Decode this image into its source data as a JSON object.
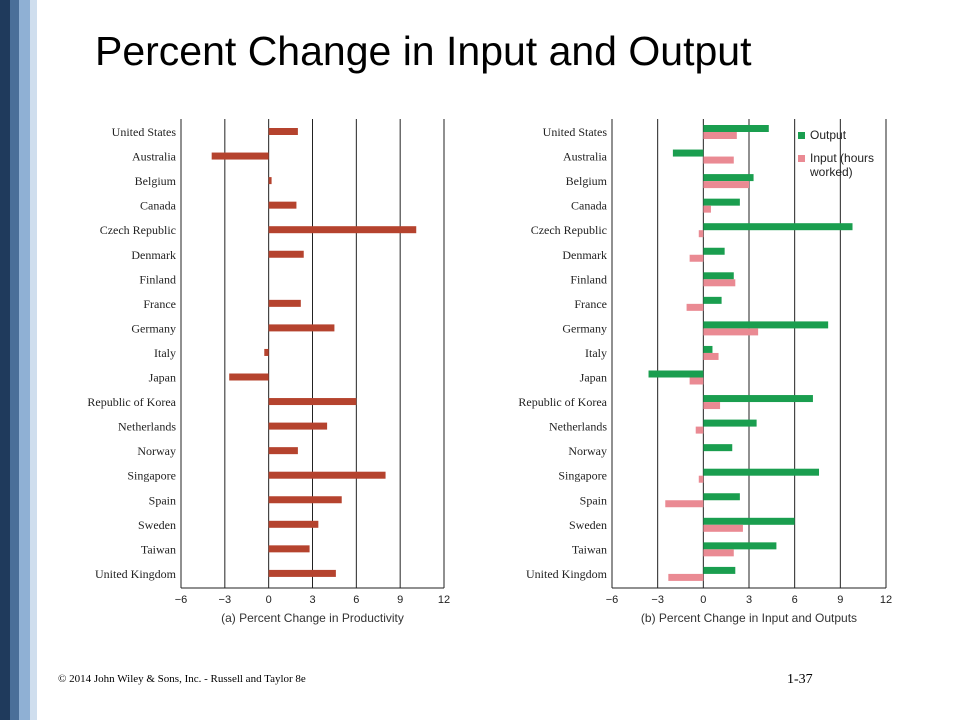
{
  "slide": {
    "title": "Percent Change in Input and Output",
    "footer": "© 2014 John Wiley & Sons, Inc. - Russell and Taylor 8e",
    "page_number": "1-37"
  },
  "colors": {
    "productivity": "#b5432e",
    "output": "#1a9e4f",
    "input": "#ea8a93",
    "grid": "#222222"
  },
  "chart_data": [
    {
      "type": "bar",
      "orientation": "horizontal",
      "xlabel": "(a) Percent Change in Productivity",
      "xlim": [
        -6,
        12
      ],
      "xticks": [
        -6,
        -3,
        0,
        3,
        6,
        9,
        12
      ],
      "xtick_labels": [
        "−6",
        "−3",
        "0",
        "3",
        "6",
        "9",
        "12"
      ],
      "grid": true,
      "categories": [
        "United States",
        "Australia",
        "Belgium",
        "Canada",
        "Czech Republic",
        "Denmark",
        "Finland",
        "France",
        "Germany",
        "Italy",
        "Japan",
        "Republic of Korea",
        "Netherlands",
        "Norway",
        "Singapore",
        "Spain",
        "Sweden",
        "Taiwan",
        "United Kingdom"
      ],
      "series": [
        {
          "values": [
            2.0,
            -3.9,
            0.2,
            1.9,
            10.1,
            2.4,
            0,
            2.2,
            4.5,
            -0.3,
            -2.7,
            6.0,
            4.0,
            2.0,
            8.0,
            5.0,
            3.4,
            2.8,
            4.6
          ]
        }
      ]
    },
    {
      "type": "bar",
      "orientation": "horizontal",
      "xlabel": "(b) Percent Change in Input and Outputs",
      "xlim": [
        -6,
        12
      ],
      "xticks": [
        -6,
        -3,
        0,
        3,
        6,
        9,
        12
      ],
      "xtick_labels": [
        "−6",
        "−3",
        "0",
        "3",
        "6",
        "9",
        "12"
      ],
      "grid": true,
      "legend_position": "top-right",
      "categories": [
        "United States",
        "Australia",
        "Belgium",
        "Canada",
        "Czech Republic",
        "Denmark",
        "Finland",
        "France",
        "Germany",
        "Italy",
        "Japan",
        "Republic of Korea",
        "Netherlands",
        "Norway",
        "Singapore",
        "Spain",
        "Sweden",
        "Taiwan",
        "United Kingdom"
      ],
      "series": [
        {
          "name": "Output",
          "values": [
            4.3,
            -2.0,
            3.3,
            2.4,
            9.8,
            1.4,
            2.0,
            1.2,
            8.2,
            0.6,
            -3.6,
            7.2,
            3.5,
            1.9,
            7.6,
            2.4,
            6.0,
            4.8,
            2.1
          ]
        },
        {
          "name": "Input (hours worked)",
          "values": [
            2.2,
            2.0,
            3.0,
            0.5,
            -0.3,
            -0.9,
            2.1,
            -1.1,
            3.6,
            1.0,
            -0.9,
            1.1,
            -0.5,
            0,
            -0.3,
            -2.5,
            2.6,
            2.0,
            -2.3
          ]
        }
      ]
    }
  ]
}
